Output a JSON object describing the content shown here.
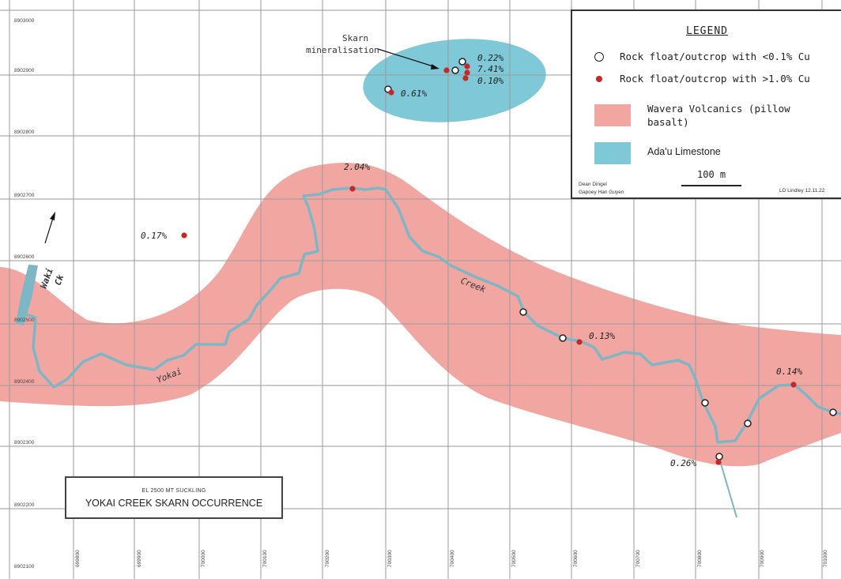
{
  "title_block": {
    "subtitle": "EL 2500 MT SUCKLING",
    "title": "YOKAI CREEK SKARN OCCURRENCE"
  },
  "legend": {
    "heading": "LEGEND",
    "low_cu_label": "Rock float/outcrop with <0.1% Cu",
    "high_cu_label": "Rock float/outcrop with >1.0% Cu",
    "volcanics_label": "Wavera Volcanics (pillow basalt)",
    "limestone_label": "Ada'u Limestone",
    "scale_label": "100 m",
    "credit_left_1": "Dean Dingel",
    "credit_left_2": "Gapoey Han Guyen",
    "credit_right": "LD Lindley 12.11.22"
  },
  "colors": {
    "volcanics_fill": "#f2a6a2",
    "limestone_fill": "#7fc8d8",
    "creek_line": "#7db6c4",
    "high_cu_dot": "#c62828",
    "low_cu_ring": "#222222",
    "grid_line": "#9a9a9a"
  },
  "northing_labels": [
    "8903000",
    "8902900",
    "8902800",
    "8902700",
    "8902600",
    "8902500",
    "8902400",
    "8902300",
    "8902200",
    "8902100"
  ],
  "easting_labels": [
    "699800",
    "699900",
    "700000",
    "700100",
    "700200",
    "700300",
    "700400",
    "700500",
    "700600",
    "700700",
    "700800",
    "700900",
    "701000"
  ],
  "map_labels": {
    "skarn_label_1": "Skarn",
    "skarn_label_2": "mineralisation",
    "creek_yokai": "Yokai",
    "creek_creek": "Creek",
    "waki_1": "Waki",
    "waki_2": "Ck"
  },
  "assays": {
    "a_022": "0.22%",
    "a_741": "7.41%",
    "a_010": "0.10%",
    "a_061": "0.61%",
    "a_204": "2.04%",
    "a_017": "0.17%",
    "a_013": "0.13%",
    "a_014": "0.14%",
    "a_026": "0.26%"
  }
}
